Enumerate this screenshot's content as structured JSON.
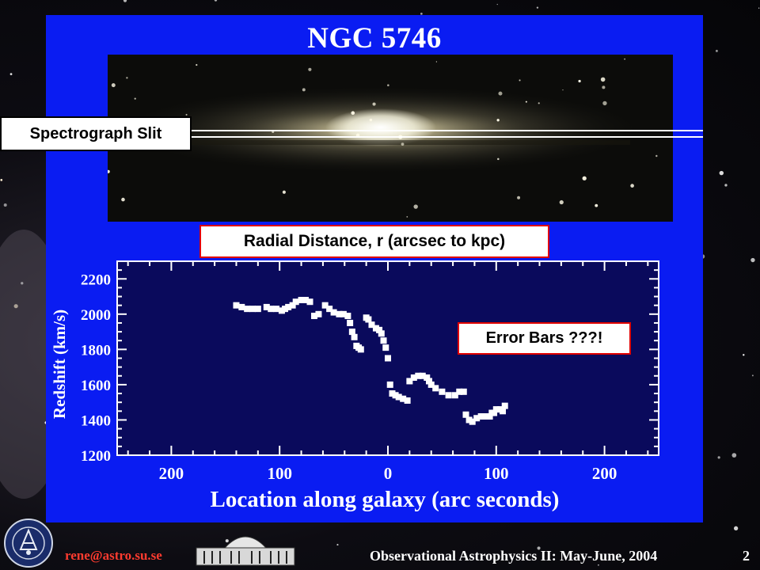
{
  "slide": {
    "title": "NGC 5746",
    "slit_label": "Spectrograph Slit",
    "radial_label": "Radial Distance, r (arcsec to kpc)",
    "error_label": "Error Bars ???!"
  },
  "footer": {
    "email": "rene@astro.su.se",
    "course": "Observational Astrophysics II:  May-June, 2004",
    "page": "2",
    "seal_text": "UNIVERSITET STOCKHOLMS"
  },
  "colors": {
    "panel": "#0a1cf2",
    "plot_background": "#0a0a5c",
    "email": "#ff3b2f",
    "callout_border": "#e00000"
  },
  "chart_data": {
    "type": "scatter",
    "xlabel": "Location along galaxy (arc seconds)",
    "ylabel": "Redshift (km/s)",
    "xlim": [
      250,
      -250
    ],
    "ylim": [
      1200,
      2300
    ],
    "x_ticks": [
      200,
      100,
      0,
      100,
      200
    ],
    "y_ticks": [
      1200,
      1400,
      1600,
      1800,
      2000,
      2200
    ],
    "series": [
      {
        "points": [
          [
            140,
            2050
          ],
          [
            135,
            2040
          ],
          [
            130,
            2030
          ],
          [
            125,
            2030
          ],
          [
            120,
            2030
          ],
          [
            112,
            2040
          ],
          [
            108,
            2030
          ],
          [
            103,
            2030
          ],
          [
            98,
            2020
          ],
          [
            95,
            2030
          ],
          [
            92,
            2040
          ],
          [
            88,
            2050
          ],
          [
            85,
            2070
          ],
          [
            80,
            2080
          ],
          [
            76,
            2080
          ],
          [
            72,
            2070
          ],
          [
            68,
            1990
          ],
          [
            64,
            2000
          ],
          [
            58,
            2050
          ],
          [
            54,
            2030
          ],
          [
            50,
            2010
          ],
          [
            45,
            2000
          ],
          [
            41,
            2000
          ],
          [
            37,
            1990
          ],
          [
            35,
            1950
          ],
          [
            33,
            1900
          ],
          [
            31,
            1870
          ],
          [
            29,
            1820
          ],
          [
            27,
            1810
          ],
          [
            25,
            1800
          ],
          [
            20,
            1980
          ],
          [
            18,
            1970
          ],
          [
            15,
            1940
          ],
          [
            11,
            1920
          ],
          [
            8,
            1910
          ],
          [
            6,
            1890
          ],
          [
            4,
            1850
          ],
          [
            2,
            1810
          ],
          [
            0,
            1750
          ],
          [
            -2,
            1600
          ],
          [
            -4,
            1550
          ],
          [
            -7,
            1540
          ],
          [
            -10,
            1530
          ],
          [
            -14,
            1520
          ],
          [
            -18,
            1510
          ],
          [
            -20,
            1620
          ],
          [
            -24,
            1640
          ],
          [
            -28,
            1650
          ],
          [
            -32,
            1650
          ],
          [
            -36,
            1640
          ],
          [
            -38,
            1620
          ],
          [
            -40,
            1600
          ],
          [
            -44,
            1580
          ],
          [
            -50,
            1560
          ],
          [
            -56,
            1540
          ],
          [
            -62,
            1540
          ],
          [
            -66,
            1560
          ],
          [
            -70,
            1560
          ],
          [
            -72,
            1430
          ],
          [
            -75,
            1400
          ],
          [
            -78,
            1390
          ],
          [
            -82,
            1410
          ],
          [
            -86,
            1420
          ],
          [
            -90,
            1420
          ],
          [
            -94,
            1420
          ],
          [
            -96,
            1440
          ],
          [
            -98,
            1440
          ],
          [
            -100,
            1460
          ],
          [
            -104,
            1460
          ],
          [
            -106,
            1450
          ],
          [
            -108,
            1480
          ]
        ]
      }
    ]
  }
}
